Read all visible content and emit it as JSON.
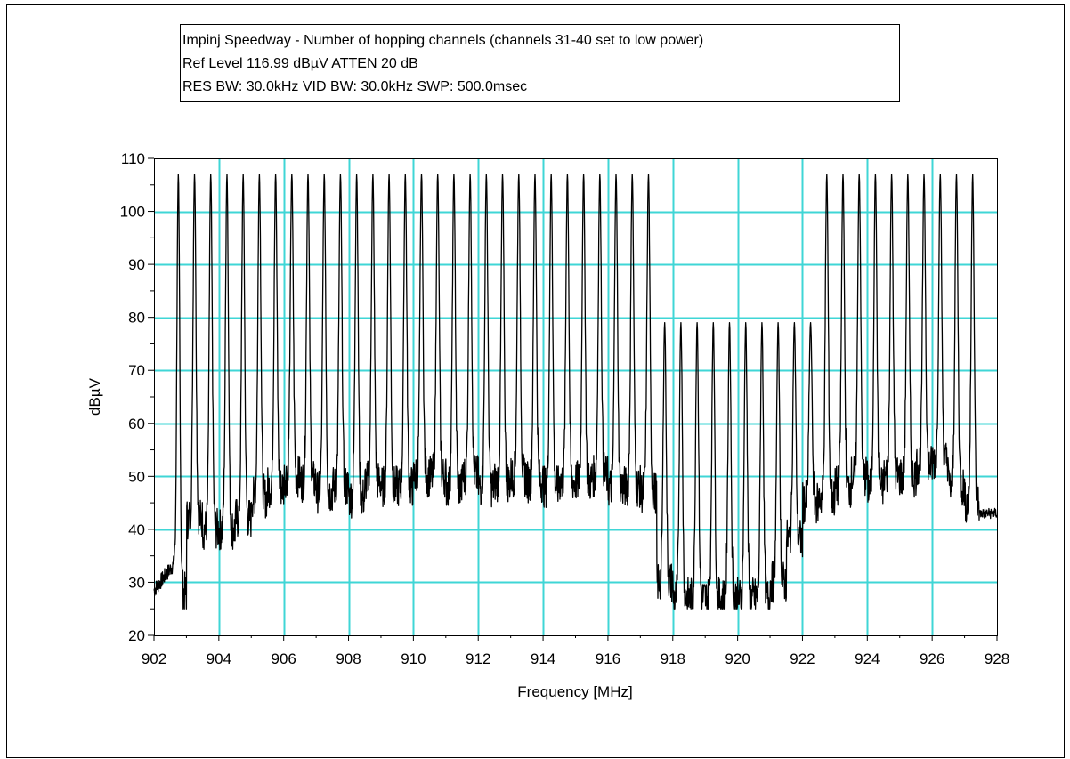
{
  "header": {
    "line1": "Impinj Speedway - Number of hopping channels (channels 31-40 set to low power)",
    "line2": "Ref Level 116.99 dBµV     ATTEN 20 dB",
    "line3": "RES BW: 30.0kHz  VID BW: 30.0kHz  SWP: 500.0msec"
  },
  "colors": {
    "grid": "#3fd6d6",
    "trace": "#000000",
    "axis": "#000000",
    "background": "#ffffff"
  },
  "chart_data": {
    "type": "line",
    "title": "Impinj Speedway - Number of hopping channels (channels 31-40 set to low power)",
    "xlabel": "Frequency [MHz]",
    "ylabel": "dBµV",
    "xlim": [
      902,
      928
    ],
    "ylim": [
      20,
      110
    ],
    "xticks": [
      902,
      904,
      906,
      908,
      910,
      912,
      914,
      916,
      918,
      920,
      922,
      924,
      926,
      928
    ],
    "yticks": [
      20,
      30,
      40,
      50,
      60,
      70,
      80,
      90,
      100,
      110
    ],
    "grid": true,
    "legend": "none",
    "series": [
      {
        "channel_peaks_mhz": [
          902.75,
          903.25,
          903.75,
          904.25,
          904.75,
          905.25,
          905.75,
          906.25,
          906.75,
          907.25,
          907.75,
          908.25,
          908.75,
          909.25,
          909.75,
          910.25,
          910.75,
          911.25,
          911.75,
          912.25,
          912.75,
          913.25,
          913.75,
          914.25,
          914.75,
          915.25,
          915.75,
          916.25,
          916.75,
          917.25,
          917.75,
          918.25,
          918.75,
          919.25,
          919.75,
          920.25,
          920.75,
          921.25,
          921.75,
          922.25,
          922.75,
          923.25,
          923.75,
          924.25,
          924.75,
          925.25,
          925.75,
          926.25,
          926.75,
          927.25
        ],
        "peak_levels_dbuv": [
          107,
          107,
          107,
          107,
          107,
          107,
          107,
          107,
          107,
          107,
          107,
          107,
          107,
          107,
          107,
          107,
          107,
          107,
          107,
          107,
          107,
          107,
          107,
          107,
          107,
          107,
          107,
          107,
          107,
          107,
          79,
          79,
          79,
          79,
          79,
          79,
          79,
          79,
          79,
          79,
          107,
          107,
          107,
          107,
          107,
          107,
          107,
          107,
          107,
          107
        ],
        "floor_levels_dbuv": [
          28,
          42,
          40,
          40,
          42,
          46,
          48,
          50,
          49,
          47,
          48,
          46,
          49,
          48,
          48,
          50,
          50,
          48,
          50,
          48,
          49,
          50,
          49,
          48,
          49,
          49,
          50,
          48,
          48,
          47,
          30,
          27,
          27,
          27,
          27,
          27,
          27,
          30,
          38,
          45,
          46,
          48,
          50,
          48,
          50,
          50,
          52,
          53,
          48,
          45
        ],
        "end_level_dbuv": 43
      }
    ]
  }
}
